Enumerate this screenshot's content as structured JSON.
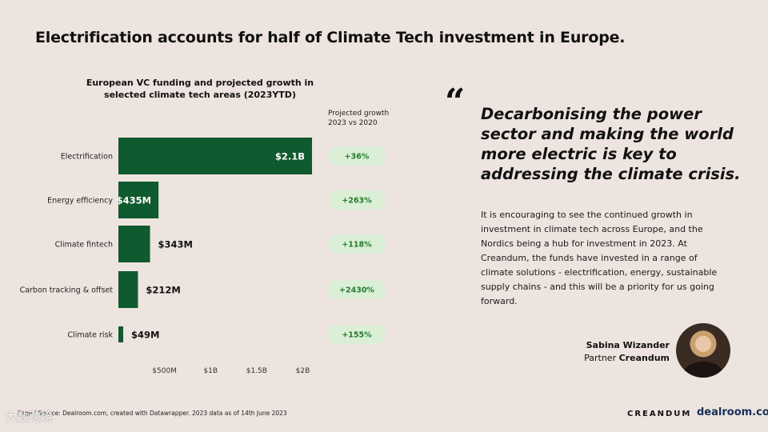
{
  "page": {
    "title": "Electrification accounts for half of Climate Tech investment in Europe.",
    "source": "Page / Source: Dealroom.com, created with Datawrapper. 2023 data as of 14th June 2023",
    "watermark": "大数跨境"
  },
  "chart_data": {
    "type": "bar",
    "orientation": "horizontal",
    "title": "European VC funding and projected growth in selected climate tech areas (2023YTD)",
    "categories": [
      "Electrification",
      "Energy efficiency",
      "Climate fintech",
      "Carbon tracking & offset",
      "Climate risk"
    ],
    "values": [
      2100,
      435,
      343,
      212,
      49
    ],
    "value_labels": [
      "$2.1B",
      "$435M",
      "$343M",
      "$212M",
      "$49M"
    ],
    "value_unit": "$M",
    "x_ticks": [
      500,
      1000,
      1500,
      2000
    ],
    "x_tick_labels": [
      "$500M",
      "$1B",
      "$1.5B",
      "$2B"
    ],
    "xlim": [
      0,
      2100
    ],
    "growth_header": [
      "Projected growth",
      "2023 vs 2020"
    ],
    "growth": [
      "+36%",
      "+263%",
      "+118%",
      "+2430%",
      "+155%"
    ],
    "colors": {
      "bar": "#0f5a2e",
      "pill_bg": "#daefd6",
      "pill_text": "#237a2c"
    }
  },
  "quote": {
    "mark": "“",
    "headline": "Decarbonising the power sector and making the world more electric is key to addressing the climate crisis.",
    "body": "It is encouraging to see the continued growth in investment in climate tech across Europe, and the Nordics being a hub for investment in 2023. At Creandum, the funds have invested in a range of climate solutions - electrification, energy, sustainable supply chains - and this will be a priority for us going forward."
  },
  "signature": {
    "name": "Sabina Wizander",
    "role_prefix": "Partner",
    "company": "Creandum"
  },
  "logos": {
    "creandum": "CREANDUM",
    "dealroom": "dealroom.co"
  }
}
